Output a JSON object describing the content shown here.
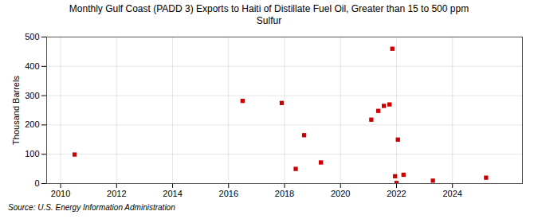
{
  "chart_data": {
    "type": "scatter",
    "title": "Monthly Gulf Coast (PADD 3) Exports to Haiti of Distillate Fuel Oil, Greater than 15 to 500 ppm\nSulfur",
    "ylabel": "Thousand Barrels",
    "source": "Source: U.S. Energy Information Administration",
    "x": [
      2010.5,
      2016.5,
      2017.9,
      2018.4,
      2018.7,
      2019.3,
      2021.1,
      2021.35,
      2021.55,
      2021.75,
      2021.85,
      2022.05,
      2021.95,
      2022.0,
      2022.25,
      2023.3,
      2025.2
    ],
    "values": [
      99,
      282,
      275,
      50,
      165,
      72,
      218,
      248,
      265,
      270,
      460,
      150,
      25,
      2,
      30,
      10,
      20
    ],
    "color": "#cc0000",
    "marker": "square",
    "xlim": [
      2009.5,
      2026.5
    ],
    "ylim": [
      0,
      500
    ],
    "xticks": [
      2010,
      2012,
      2014,
      2016,
      2018,
      2020,
      2022,
      2024
    ],
    "yticks": [
      0,
      100,
      200,
      300,
      400,
      500
    ],
    "grid": true
  }
}
